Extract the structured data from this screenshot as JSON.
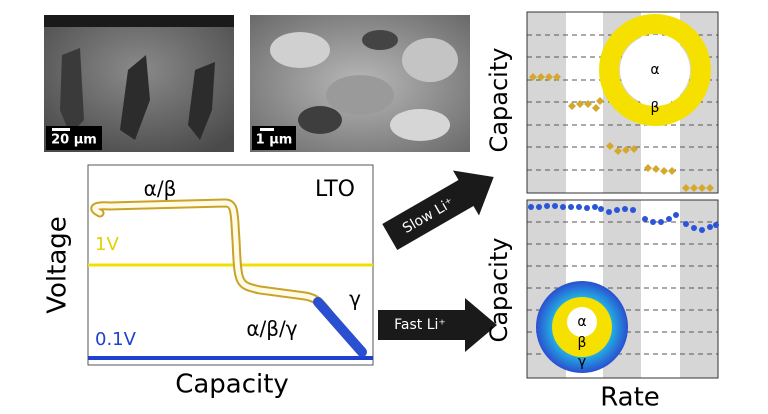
{
  "images": {
    "sem_left": {
      "scale_label": "20 µm"
    },
    "sem_right": {
      "scale_label": "1 µm"
    }
  },
  "voltage_plot": {
    "y_label": "Voltage",
    "x_label": "Capacity",
    "material": "LTO",
    "phase_top": "α/β",
    "phase_mid": "α/β/γ",
    "phase_end": "γ",
    "line_high": "1V",
    "line_low": "0.1V"
  },
  "arrows": {
    "slow": "Slow Li⁺",
    "fast": "Fast Li⁺"
  },
  "rate_top": {
    "y_label": "Capacity",
    "ring": [
      "α",
      "β"
    ]
  },
  "rate_bottom": {
    "y_label": "Capacity",
    "x_label": "Rate",
    "ring": [
      "α",
      "β",
      "γ"
    ]
  }
}
